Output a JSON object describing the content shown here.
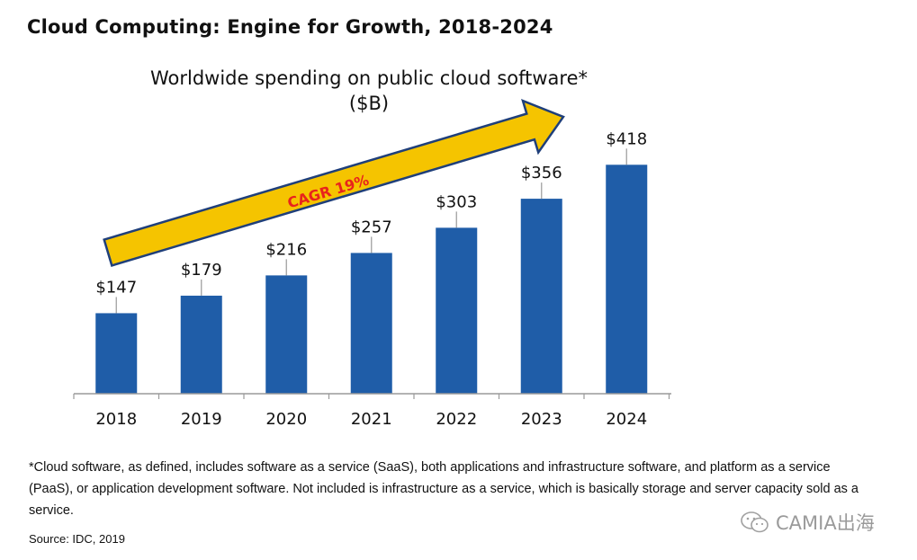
{
  "title": "Cloud Computing: Engine for Growth, 2018-2024",
  "chart_data": {
    "type": "bar",
    "title": "Worldwide spending on public cloud software*",
    "subtitle": "($B)",
    "categories": [
      "2018",
      "2019",
      "2020",
      "2021",
      "2022",
      "2023",
      "2024"
    ],
    "values": [
      147,
      179,
      216,
      257,
      303,
      356,
      418
    ],
    "data_labels": [
      "$147",
      "$179",
      "$216",
      "$257",
      "$303",
      "$356",
      "$418"
    ],
    "ylim": [
      0,
      430
    ],
    "grid": false,
    "bar_color": "#1f5da8",
    "annotation": {
      "text": "CAGR 19%",
      "arrow_color": "#f5c400",
      "text_color": "#e8231c"
    }
  },
  "footnote": "*Cloud software, as defined, includes software as a service (SaaS), both applications and infrastructure software, and platform as a service (PaaS), or application development software. Not included is infrastructure as a service, which is basically storage and server capacity sold as a service.",
  "source": "Source: IDC, 2019",
  "watermark": {
    "text": "CAMIA出海",
    "icon": "wechat-icon"
  }
}
